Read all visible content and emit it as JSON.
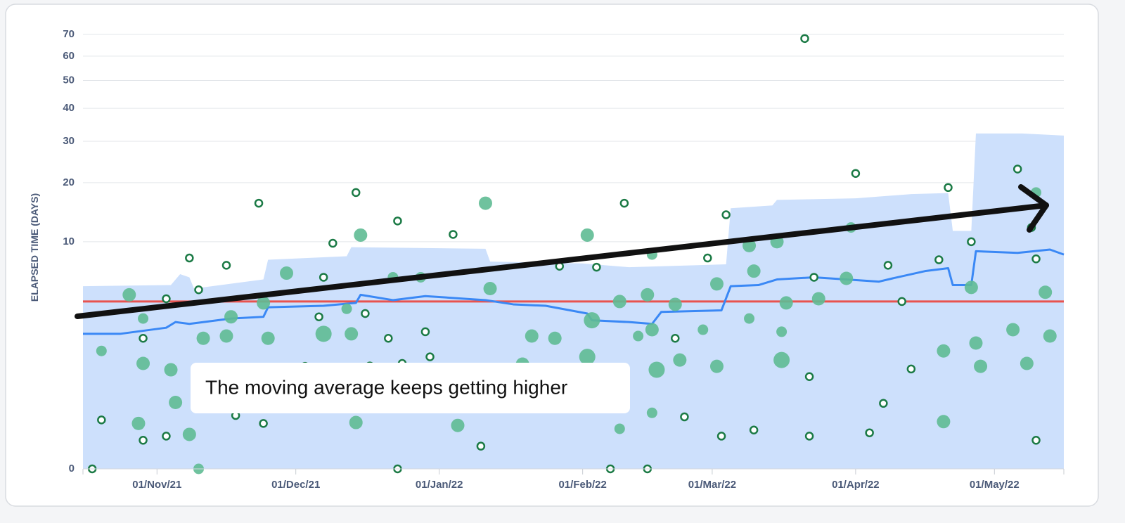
{
  "chart_data": {
    "type": "scatter",
    "y_label": "ELAPSED TIME (DAYS)",
    "yscale": "cbrt",
    "ylim": [
      0,
      75
    ],
    "yticks": [
      0,
      10,
      20,
      30,
      40,
      50,
      60,
      70
    ],
    "xlim": [
      "2021-10-16",
      "2022-05-16"
    ],
    "xticks": [
      {
        "value": "2021-11-01",
        "label": "01/Nov/21"
      },
      {
        "value": "2021-12-01",
        "label": "01/Dec/21"
      },
      {
        "value": "2022-01-01",
        "label": "01/Jan/22"
      },
      {
        "value": "2022-02-01",
        "label": "01/Feb/22"
      },
      {
        "value": "2022-03-01",
        "label": "01/Mar/22"
      },
      {
        "value": "2022-04-01",
        "label": "01/Apr/22"
      },
      {
        "value": "2022-05-01",
        "label": "01/May/22"
      }
    ],
    "grid": true,
    "reference_line": {
      "value": 4,
      "color": "#e8534f"
    },
    "annotation": "The moving average keeps getting higher",
    "series": [
      {
        "type": "area",
        "color": "#cde0fc",
        "x": [
          "2021-10-16",
          "2021-11-04",
          "2021-11-06",
          "2021-11-08",
          "2021-11-09",
          "2021-11-24",
          "2021-11-25",
          "2021-12-12",
          "2021-12-13",
          "2022-01-11",
          "2022-01-12",
          "2022-02-01",
          "2022-02-11",
          "2022-03-04",
          "2022-03-05",
          "2022-03-14",
          "2022-03-15",
          "2022-04-01",
          "2022-04-13",
          "2022-04-21",
          "2022-04-22",
          "2022-04-26",
          "2022-04-27",
          "2022-05-07",
          "2022-05-16"
        ],
        "values": [
          5.2,
          5.3,
          6.3,
          6.0,
          5.0,
          5.8,
          7.8,
          8.2,
          9.3,
          9.1,
          7.6,
          7.4,
          7.0,
          7.3,
          15.1,
          15.6,
          16.6,
          16.9,
          17.7,
          17.9,
          11.5,
          11.5,
          32.2,
          32.2,
          31.6
        ]
      },
      {
        "type": "line",
        "color": "#3a88f5",
        "x": [
          "2021-10-16",
          "2021-10-24",
          "2021-11-03",
          "2021-11-05",
          "2021-11-08",
          "2021-11-17",
          "2021-11-24",
          "2021-11-25",
          "2021-12-07",
          "2021-12-14",
          "2021-12-15",
          "2021-12-22",
          "2021-12-29",
          "2022-01-11",
          "2022-01-17",
          "2022-01-24",
          "2022-02-02",
          "2022-02-03",
          "2022-02-11",
          "2022-02-16",
          "2022-02-18",
          "2022-03-03",
          "2022-03-05",
          "2022-03-11",
          "2022-03-15",
          "2022-03-23",
          "2022-04-06",
          "2022-04-09",
          "2022-04-16",
          "2022-04-21",
          "2022-04-22",
          "2022-04-26",
          "2022-04-27",
          "2022-05-06",
          "2022-05-13",
          "2022-05-16"
        ],
        "values": [
          2.1,
          2.1,
          2.4,
          2.7,
          2.6,
          2.9,
          3.0,
          3.6,
          3.7,
          3.9,
          4.5,
          4.1,
          4.4,
          4.1,
          3.8,
          3.7,
          3.2,
          2.8,
          2.7,
          2.6,
          3.3,
          3.4,
          5.2,
          5.3,
          5.8,
          6.0,
          5.6,
          5.9,
          6.6,
          6.9,
          5.3,
          5.3,
          8.8,
          8.6,
          9.0,
          8.4
        ]
      },
      {
        "type": "scatter",
        "color": "#5fbb93",
        "x": [
          "2021-10-20",
          "2021-10-26",
          "2021-10-28",
          "2021-10-29",
          "2021-10-29",
          "2021-11-04",
          "2021-11-05",
          "2021-11-08",
          "2021-11-10",
          "2021-11-11",
          "2021-11-16",
          "2021-11-17",
          "2021-11-24",
          "2021-11-25",
          "2021-11-29",
          "2021-12-07",
          "2021-12-12",
          "2021-12-13",
          "2021-12-14",
          "2021-12-15",
          "2021-12-22",
          "2021-12-28",
          "2022-01-05",
          "2022-01-11",
          "2022-01-12",
          "2022-01-19",
          "2022-01-21",
          "2022-01-26",
          "2022-02-02",
          "2022-02-02",
          "2022-02-03",
          "2022-02-09",
          "2022-02-09",
          "2022-02-13",
          "2022-02-15",
          "2022-02-16",
          "2022-02-16",
          "2022-02-16",
          "2022-02-17",
          "2022-02-21",
          "2022-02-22",
          "2022-02-27",
          "2022-03-02",
          "2022-03-02",
          "2022-03-09",
          "2022-03-09",
          "2022-03-10",
          "2022-03-15",
          "2022-03-16",
          "2022-03-16",
          "2022-03-17",
          "2022-03-24",
          "2022-03-30",
          "2022-03-31",
          "2022-04-20",
          "2022-04-20",
          "2022-04-26",
          "2022-04-27",
          "2022-04-28",
          "2022-05-05",
          "2022-05-08",
          "2022-05-10",
          "2022-05-12",
          "2022-05-13"
        ],
        "values": [
          1.4,
          4.5,
          0.08,
          2.9,
          1,
          0.83,
          0.25,
          0.035,
          0,
          1.9,
          2,
          3,
          3.9,
          1.9,
          6.4,
          2.1,
          3.5,
          2.1,
          0.085,
          10.9,
          6,
          6,
          0.07,
          16,
          5,
          0.98,
          2,
          1.9,
          1.2,
          10.9,
          2.8,
          4,
          0.055,
          2,
          4.5,
          8.4,
          0.15,
          2.3,
          0.83,
          3.8,
          1.1,
          2.3,
          0.92,
          5.4,
          2.9,
          9.5,
          6.6,
          10,
          1.1,
          2.2,
          3.9,
          4.2,
          5.9,
          12,
          1.4,
          0.09,
          5.1,
          1.7,
          0.92,
          2.3,
          1,
          18,
          4.7,
          2
        ],
        "sizes": [
          1,
          2,
          2,
          1,
          2,
          2,
          2,
          2,
          1,
          2,
          2,
          2,
          2,
          2,
          2,
          3,
          1,
          2,
          2,
          2,
          1,
          1,
          2,
          2,
          2,
          2,
          2,
          2,
          3,
          2,
          3,
          2,
          1,
          1,
          2,
          1,
          1,
          2,
          3,
          2,
          2,
          1,
          2,
          2,
          1,
          2,
          2,
          2,
          3,
          1,
          2,
          2,
          2,
          1,
          2,
          2,
          2,
          2,
          2,
          2,
          2,
          1,
          2,
          2
        ]
      },
      {
        "type": "scatter",
        "color": "#1b7a45",
        "hollow": true,
        "x": [
          "2021-10-18",
          "2021-10-20",
          "2021-10-29",
          "2021-10-29",
          "2021-11-03",
          "2021-11-03",
          "2021-11-08",
          "2021-11-10",
          "2021-11-16",
          "2021-11-18",
          "2021-11-23",
          "2021-11-24",
          "2021-12-03",
          "2021-12-06",
          "2021-12-07",
          "2021-12-09",
          "2021-12-14",
          "2021-12-16",
          "2021-12-17",
          "2021-12-21",
          "2021-12-23",
          "2021-12-23",
          "2021-12-24",
          "2021-12-29",
          "2021-12-30",
          "2022-01-04",
          "2022-01-10",
          "2022-01-27",
          "2022-02-04",
          "2022-02-07",
          "2022-02-10",
          "2022-02-15",
          "2022-02-21",
          "2022-02-23",
          "2022-02-28",
          "2022-03-03",
          "2022-03-04",
          "2022-03-10",
          "2022-03-21",
          "2022-03-22",
          "2022-03-22",
          "2022-03-23",
          "2022-04-01",
          "2022-04-04",
          "2022-04-07",
          "2022-04-08",
          "2022-04-11",
          "2022-04-13",
          "2022-04-19",
          "2022-04-21",
          "2022-04-26",
          "2022-05-06",
          "2022-05-09",
          "2022-05-10",
          "2022-05-10"
        ],
        "values": [
          0,
          0.1,
          0.02,
          1.9,
          0.03,
          4.2,
          8,
          4.9,
          7.2,
          0.13,
          16,
          0.08,
          0.92,
          3,
          6,
          9.8,
          18,
          3.2,
          0.93,
          1.9,
          13,
          0,
          1,
          2.2,
          1.2,
          11,
          0.01,
          7.1,
          7,
          0,
          16,
          0,
          1.9,
          0.12,
          8,
          0.03,
          14,
          0.05,
          68,
          0.67,
          0.03,
          6,
          22,
          0.04,
          0.24,
          7.2,
          4,
          0.85,
          7.8,
          19,
          10,
          23,
          12,
          0.02,
          7.9
        ]
      }
    ]
  }
}
